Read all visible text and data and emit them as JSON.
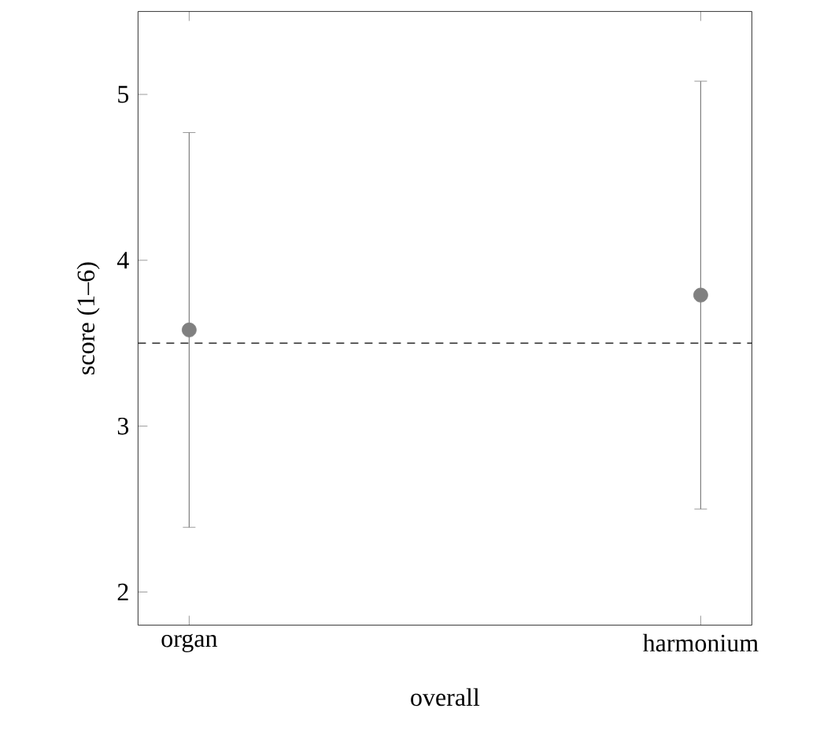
{
  "chart_data": {
    "type": "scatter",
    "xlabel": "overall",
    "ylabel": "score (1–6)",
    "categories": [
      "organ",
      "harmonium"
    ],
    "series": [
      {
        "color": "#808080",
        "values": [
          3.58,
          3.79
        ],
        "errors": [
          1.19,
          1.29
        ]
      }
    ],
    "marker": "circle",
    "ylim": [
      1.8,
      5.5
    ],
    "yticks": [
      2,
      3,
      4,
      5
    ],
    "ref_lines": [
      {
        "axis": "y",
        "value": 3.5,
        "color": "#000000",
        "line_style": "dashed"
      }
    ]
  }
}
